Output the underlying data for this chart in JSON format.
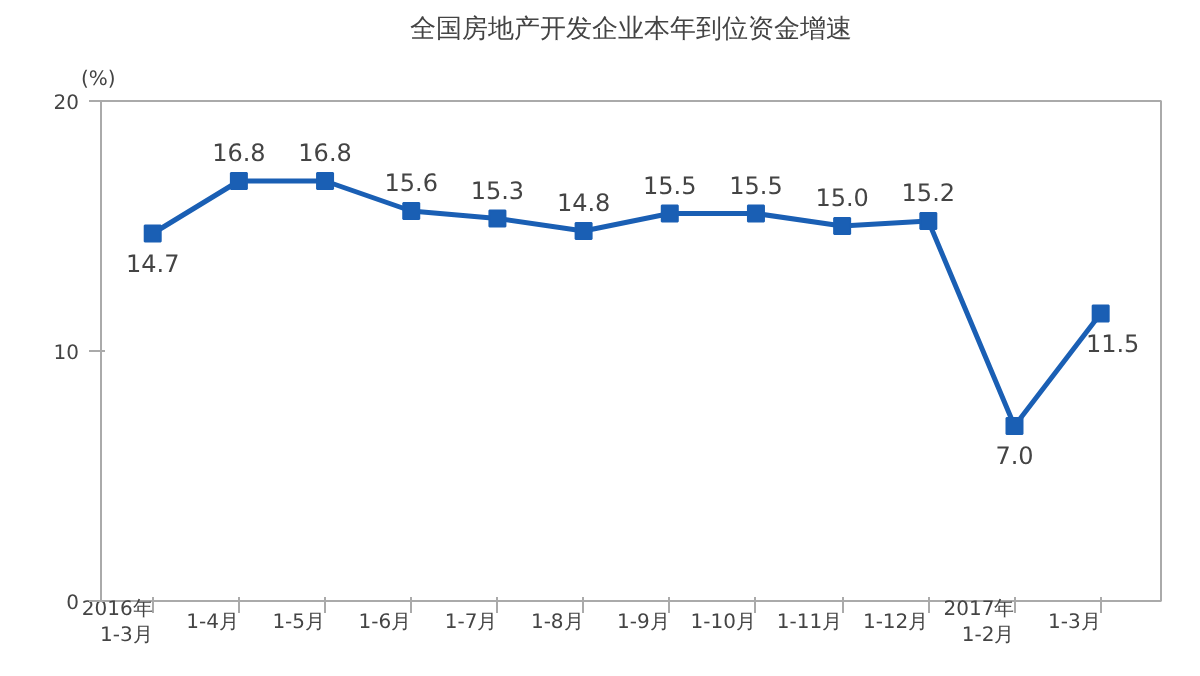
{
  "chart_data": {
    "type": "line",
    "title": "全国房地产开发企业本年到位资金增速",
    "ylabel": "(%)",
    "categories": [
      "2016年\n1-3月",
      "1-4月",
      "1-5月",
      "1-6月",
      "1-7月",
      "1-8月",
      "1-9月",
      "1-10月",
      "1-11月",
      "1-12月",
      "2017年\n1-2月",
      "1-3月"
    ],
    "series": [
      {
        "color": "#1a5fb4",
        "values": [
          14.7,
          16.8,
          16.8,
          15.6,
          15.3,
          14.8,
          15.5,
          15.5,
          15.0,
          15.2,
          7.0,
          11.5
        ],
        "value_labels": [
          "14.7",
          "16.8",
          "16.8",
          "15.6",
          "15.3",
          "14.8",
          "15.5",
          "15.5",
          "15.0",
          "15.2",
          "7.0",
          "11.5"
        ]
      }
    ],
    "ylim": [
      0,
      20
    ],
    "yticks": [
      0,
      10,
      20
    ],
    "grid": false,
    "marker": "square",
    "line_style": "solid"
  }
}
